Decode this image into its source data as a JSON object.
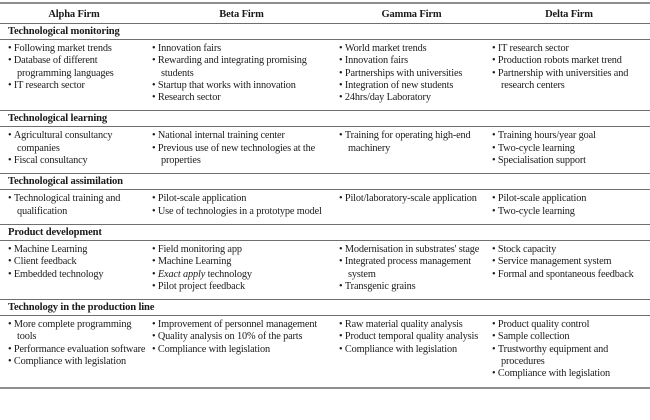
{
  "colors": {
    "text": "#1b1b1b",
    "rule_thin": "#6f6f6f",
    "rule_thick": "#8f8f8f",
    "background": "#ffffff"
  },
  "table": {
    "columns": [
      "Alpha Firm",
      "Beta Firm",
      "Gamma Firm",
      "Delta Firm"
    ],
    "sections": [
      {
        "title": "Technological monitoring",
        "cells": [
          [
            "Following market trends",
            "Database of different programming languages",
            "IT research sector"
          ],
          [
            "Innovation fairs",
            "Rewarding and integrating promising students",
            "Startup that works with innovation",
            "Research sector"
          ],
          [
            "World market trends",
            "Innovation fairs",
            "Partnerships with universities",
            "Integration of new students",
            "24hrs/day Laboratory"
          ],
          [
            "IT research sector",
            "Production robots market trend",
            "Partnership with universities and research centers"
          ]
        ]
      },
      {
        "title": "Technological learning",
        "cells": [
          [
            "Agricultural consultancy companies",
            "Fiscal consultancy"
          ],
          [
            "National internal training center",
            "Previous use of new technologies at the properties"
          ],
          [
            "Training for operating high-end machinery"
          ],
          [
            "Training hours/year goal",
            "Two-cycle learning",
            "Specialisation support"
          ]
        ]
      },
      {
        "title": "Technological assimilation",
        "cells": [
          [
            "Technological training and qualification"
          ],
          [
            "Pilot-scale application",
            "Use of technologies in a prototype model"
          ],
          [
            "Pilot/laboratory-scale application"
          ],
          [
            "Pilot-scale application",
            "Two-cycle learning"
          ]
        ]
      },
      {
        "title": "Product development",
        "cells": [
          [
            "Machine Learning",
            "Client feedback",
            "Embedded technology"
          ],
          [
            "Field monitoring app",
            "Machine Learning",
            {
              "text": "Exact apply technology",
              "italic": "Exact apply"
            },
            "Pilot project feedback"
          ],
          [
            "Modernisation in substrates' stage",
            "Integrated process management system",
            "Transgenic grains"
          ],
          [
            "Stock capacity",
            "Service management system",
            "Formal and spontaneous feedback"
          ]
        ]
      },
      {
        "title": "Technology in the production line",
        "cells": [
          [
            "More complete programming tools",
            "Performance evaluation software",
            "Compliance with legislation"
          ],
          [
            "Improvement of personnel management",
            "Quality analysis on 10% of the parts",
            "Compliance with legislation"
          ],
          [
            "Raw material quality analysis",
            "Product temporal quality analysis",
            "Compliance with legislation"
          ],
          [
            "Product quality control",
            "Sample collection",
            "Trustworthy equipment and procedures",
            "Compliance with legislation"
          ]
        ]
      }
    ]
  }
}
